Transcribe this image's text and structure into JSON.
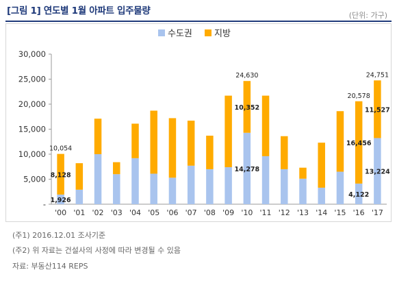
{
  "header": {
    "title": "[그림 1] 연도별 1월 아파트 입주물량",
    "unit": "(단위: 가구)"
  },
  "notes": {
    "note1": "(주1) 2016.12.01  조사기준",
    "note2": "(주2) 위 자료는 건설사의 사정에 따라 변경될 수 있음",
    "source": "자료: 부동산114  REPS"
  },
  "colors": {
    "capital_area": "#a9c4ee",
    "regional": "#ffab00",
    "axis": "#9a9a9a",
    "title": "#1f3a7a"
  },
  "chart_data": {
    "type": "bar",
    "stacked": true,
    "title": "",
    "xlabel": "",
    "ylabel": "",
    "ylim": [
      0,
      30000
    ],
    "yticks": [
      0,
      5000,
      10000,
      15000,
      20000,
      25000,
      30000
    ],
    "ytick_labels": [
      "-",
      "5,000",
      "10,000",
      "15,000",
      "20,000",
      "25,000",
      "30,000"
    ],
    "grid": false,
    "legend_position": "top-center",
    "categories": [
      "'00",
      "'01",
      "'02",
      "'03",
      "'04",
      "'05",
      "'06",
      "'07",
      "'08",
      "'09",
      "'10",
      "'11",
      "'12",
      "'13",
      "'14",
      "'15",
      "'16",
      "'17"
    ],
    "series": [
      {
        "name": "수도권",
        "values": [
          1926,
          2900,
          10000,
          6000,
          9200,
          6100,
          5300,
          7700,
          7000,
          7400,
          14278,
          9600,
          7000,
          5100,
          3300,
          6500,
          4122,
          13224
        ]
      },
      {
        "name": "지방",
        "values": [
          8128,
          5300,
          7100,
          2400,
          6900,
          12600,
          11900,
          9000,
          6700,
          14300,
          10352,
          12100,
          6600,
          2200,
          9000,
          12100,
          16456,
          11527
        ]
      }
    ],
    "data_labels": [
      {
        "category": "'00",
        "series": "수도권",
        "text": "1,926"
      },
      {
        "category": "'00",
        "series": "지방",
        "text": "8,128"
      },
      {
        "category": "'00",
        "series": "total",
        "text": "10,054"
      },
      {
        "category": "'10",
        "series": "수도권",
        "text": "14,278"
      },
      {
        "category": "'10",
        "series": "지방",
        "text": "10,352"
      },
      {
        "category": "'10",
        "series": "total",
        "text": "24,630"
      },
      {
        "category": "'16",
        "series": "수도권",
        "text": "4,122"
      },
      {
        "category": "'16",
        "series": "지방",
        "text": "16,456"
      },
      {
        "category": "'16",
        "series": "total",
        "text": "20,578"
      },
      {
        "category": "'17",
        "series": "수도권",
        "text": "13,224"
      },
      {
        "category": "'17",
        "series": "지방",
        "text": "11,527"
      },
      {
        "category": "'17",
        "series": "total",
        "text": "24,751"
      }
    ]
  }
}
